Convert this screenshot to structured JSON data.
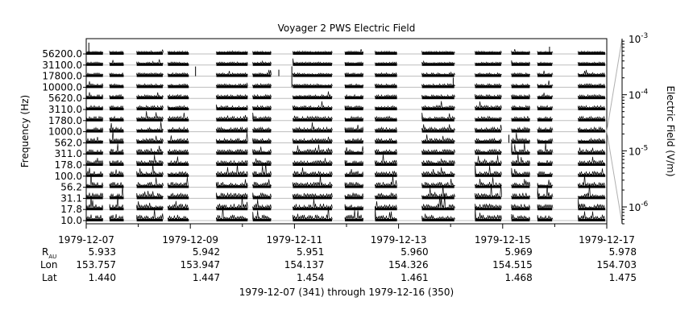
{
  "chart_data": {
    "type": "line",
    "title": "Voyager 2 PWS Electric Field",
    "xlabel": "1979-12-07 (341) through 1979-12-16 (350)",
    "ylabel": "Frequency (Hz)",
    "colorbar_label": "Electric Field (V/m)",
    "channels": [
      "56200.0",
      "31100.0",
      "17800.0",
      "10000.0",
      "5620.0",
      "3110.0",
      "1780.0",
      "1000.0",
      "562.0",
      "311.0",
      "178.0",
      "100.0",
      "56.2",
      "31.1",
      "17.8",
      "10.0"
    ],
    "x_ticks": [
      "1979-12-07",
      "1979-12-09",
      "1979-12-11",
      "1979-12-13",
      "1979-12-15",
      "1979-12-17"
    ],
    "xlim": [
      "1979-12-07",
      "1979-12-17"
    ],
    "ephemeris": {
      "labels": {
        "r_main": "R",
        "r_sub": "AU",
        "lon": "Lon",
        "lat": "Lat"
      },
      "r_au": [
        "5.933",
        "5.942",
        "5.951",
        "5.960",
        "5.969",
        "5.978"
      ],
      "lon": [
        "153.757",
        "153.947",
        "154.137",
        "154.326",
        "154.515",
        "154.703"
      ],
      "lat": [
        "1.440",
        "1.447",
        "1.454",
        "1.461",
        "1.468",
        "1.475"
      ]
    },
    "colorbar": {
      "scale": "log",
      "range": [
        5e-07,
        0.001
      ],
      "ticks": [
        {
          "value": 0.001,
          "mantissa": "10",
          "exp": "-3"
        },
        {
          "value": 0.0001,
          "mantissa": "10",
          "exp": "-4"
        },
        {
          "value": 1e-05,
          "mantissa": "10",
          "exp": "-5"
        },
        {
          "value": 1e-06,
          "mantissa": "10",
          "exp": "-6"
        }
      ]
    },
    "data_segments_days": [
      [
        0.0,
        0.32
      ],
      [
        0.45,
        0.72
      ],
      [
        0.97,
        1.47
      ],
      [
        1.57,
        1.97
      ],
      [
        2.5,
        3.1
      ],
      [
        3.2,
        3.55
      ],
      [
        3.97,
        4.72
      ],
      [
        4.97,
        5.32
      ],
      [
        5.55,
        5.97
      ],
      [
        6.45,
        7.07
      ],
      [
        7.47,
        7.97
      ],
      [
        8.17,
        8.52
      ],
      [
        8.67,
        8.95
      ],
      [
        9.45,
        9.97
      ]
    ],
    "grid": true
  }
}
